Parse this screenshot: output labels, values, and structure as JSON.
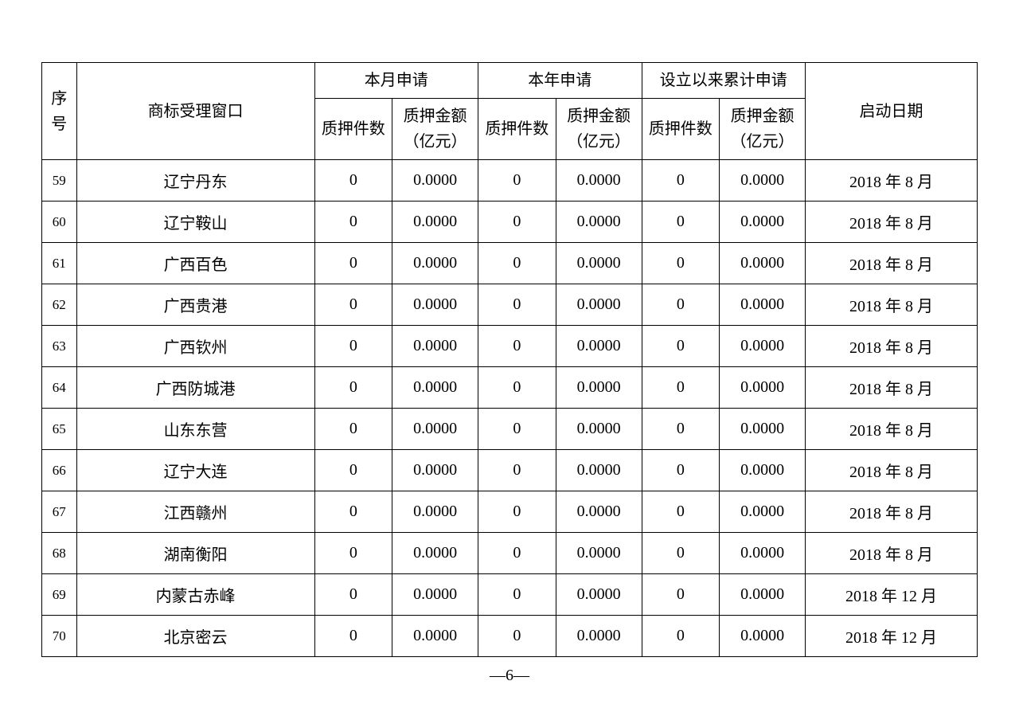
{
  "table": {
    "header": {
      "seq": "序号",
      "name": "商标受理窗口",
      "month_group": "本月申请",
      "year_group": "本年申请",
      "total_group": "设立以来累计申请",
      "count_label": "质押件数",
      "amount_label": "质押金额（亿元）",
      "start_date": "启动日期"
    },
    "rows": [
      {
        "seq": "59",
        "name": "辽宁丹东",
        "m_cnt": "0",
        "m_amt": "0.0000",
        "y_cnt": "0",
        "y_amt": "0.0000",
        "t_cnt": "0",
        "t_amt": "0.0000",
        "date": "2018 年 8 月"
      },
      {
        "seq": "60",
        "name": "辽宁鞍山",
        "m_cnt": "0",
        "m_amt": "0.0000",
        "y_cnt": "0",
        "y_amt": "0.0000",
        "t_cnt": "0",
        "t_amt": "0.0000",
        "date": "2018 年 8 月"
      },
      {
        "seq": "61",
        "name": "广西百色",
        "m_cnt": "0",
        "m_amt": "0.0000",
        "y_cnt": "0",
        "y_amt": "0.0000",
        "t_cnt": "0",
        "t_amt": "0.0000",
        "date": "2018 年 8 月"
      },
      {
        "seq": "62",
        "name": "广西贵港",
        "m_cnt": "0",
        "m_amt": "0.0000",
        "y_cnt": "0",
        "y_amt": "0.0000",
        "t_cnt": "0",
        "t_amt": "0.0000",
        "date": "2018 年 8 月"
      },
      {
        "seq": "63",
        "name": "广西钦州",
        "m_cnt": "0",
        "m_amt": "0.0000",
        "y_cnt": "0",
        "y_amt": "0.0000",
        "t_cnt": "0",
        "t_amt": "0.0000",
        "date": "2018 年 8 月"
      },
      {
        "seq": "64",
        "name": "广西防城港",
        "m_cnt": "0",
        "m_amt": "0.0000",
        "y_cnt": "0",
        "y_amt": "0.0000",
        "t_cnt": "0",
        "t_amt": "0.0000",
        "date": "2018 年 8 月"
      },
      {
        "seq": "65",
        "name": "山东东营",
        "m_cnt": "0",
        "m_amt": "0.0000",
        "y_cnt": "0",
        "y_amt": "0.0000",
        "t_cnt": "0",
        "t_amt": "0.0000",
        "date": "2018 年 8 月"
      },
      {
        "seq": "66",
        "name": "辽宁大连",
        "m_cnt": "0",
        "m_amt": "0.0000",
        "y_cnt": "0",
        "y_amt": "0.0000",
        "t_cnt": "0",
        "t_amt": "0.0000",
        "date": "2018 年 8 月"
      },
      {
        "seq": "67",
        "name": "江西赣州",
        "m_cnt": "0",
        "m_amt": "0.0000",
        "y_cnt": "0",
        "y_amt": "0.0000",
        "t_cnt": "0",
        "t_amt": "0.0000",
        "date": "2018 年 8 月"
      },
      {
        "seq": "68",
        "name": "湖南衡阳",
        "m_cnt": "0",
        "m_amt": "0.0000",
        "y_cnt": "0",
        "y_amt": "0.0000",
        "t_cnt": "0",
        "t_amt": "0.0000",
        "date": "2018 年 8 月"
      },
      {
        "seq": "69",
        "name": "内蒙古赤峰",
        "m_cnt": "0",
        "m_amt": "0.0000",
        "y_cnt": "0",
        "y_amt": "0.0000",
        "t_cnt": "0",
        "t_amt": "0.0000",
        "date": "2018 年 12 月"
      },
      {
        "seq": "70",
        "name": "北京密云",
        "m_cnt": "0",
        "m_amt": "0.0000",
        "y_cnt": "0",
        "y_amt": "0.0000",
        "t_cnt": "0",
        "t_amt": "0.0000",
        "date": "2018 年 12 月"
      }
    ],
    "border_color": "#000000",
    "background_color": "#ffffff",
    "font_family": "SimSun",
    "header_fontsize": 20,
    "cell_fontsize": 20,
    "seq_fontsize": 17
  },
  "page_number": "—6—"
}
